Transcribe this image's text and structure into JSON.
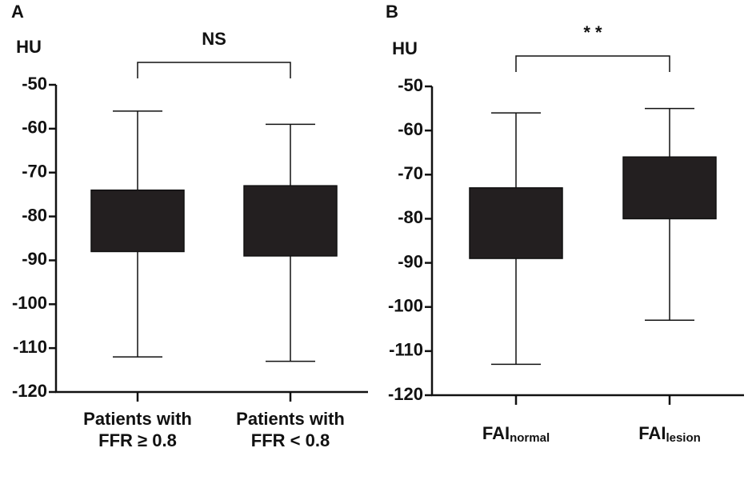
{
  "chart_data": [
    {
      "type": "box",
      "panel_label": "A",
      "ylabel": "HU",
      "annotation": "NS",
      "categories": [
        "Patients with FFR ≥ 0.8",
        "Patients with FFR < 0.8"
      ],
      "min": [
        -112,
        -113
      ],
      "q1": [
        -88,
        -89
      ],
      "q3": [
        -74,
        -73
      ],
      "max": [
        -56,
        -59
      ],
      "color": "#231f20",
      "ylim": [
        -120,
        -50
      ],
      "yticks": [
        -120,
        -110,
        -100,
        -90,
        -80,
        -70,
        -60,
        -50
      ]
    },
    {
      "type": "box",
      "panel_label": "B",
      "ylabel": "HU",
      "annotation": "* *",
      "categories": [
        "FAI",
        "FAI"
      ],
      "category_subscripts": [
        "normal",
        "lesion"
      ],
      "min": [
        -113,
        -103
      ],
      "q1": [
        -89,
        -80
      ],
      "q3": [
        -73,
        -66
      ],
      "max": [
        -56,
        -55
      ],
      "color": "#231f20",
      "ylim": [
        -120,
        -50
      ],
      "yticks": [
        -120,
        -110,
        -100,
        -90,
        -80,
        -70,
        -60,
        -50
      ]
    }
  ]
}
